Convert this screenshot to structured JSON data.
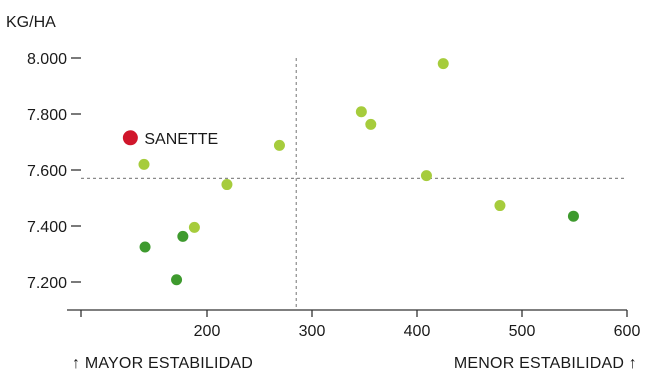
{
  "chart_data": {
    "type": "scatter",
    "ylabel": "KG/HA",
    "xlabel": "",
    "xlim": [
      80,
      600
    ],
    "ylim": [
      7100,
      8000
    ],
    "x_ticks": [
      200,
      300,
      400,
      500,
      600
    ],
    "x_tick_labels": [
      "200",
      "300",
      "400",
      "500",
      "600"
    ],
    "y_ticks": [
      7200,
      7400,
      7600,
      7800,
      8000
    ],
    "y_tick_labels": [
      "7.200",
      "7.400",
      "7.600",
      "7.800",
      "8.000"
    ],
    "reference_lines": {
      "x": 285,
      "y": 7570
    },
    "colors": {
      "highlight": "#d0162b",
      "light_green": "#a6cc3c",
      "dark_green": "#3e9a2e",
      "reference": "#8a8a8a",
      "axis": "#333333"
    },
    "series": [
      {
        "color": "#d0162b",
        "points": [
          {
            "x": 127,
            "y": 7715
          }
        ]
      },
      {
        "color": "#a6cc3c",
        "points": [
          {
            "x": 140,
            "y": 7620
          },
          {
            "x": 188,
            "y": 7395
          },
          {
            "x": 219,
            "y": 7548
          },
          {
            "x": 269,
            "y": 7688
          },
          {
            "x": 347,
            "y": 7808
          },
          {
            "x": 356,
            "y": 7763
          },
          {
            "x": 409,
            "y": 7580
          },
          {
            "x": 425,
            "y": 7980
          },
          {
            "x": 479,
            "y": 7473
          }
        ]
      },
      {
        "color": "#3e9a2e",
        "points": [
          {
            "x": 141,
            "y": 7325
          },
          {
            "x": 171,
            "y": 7208
          },
          {
            "x": 177,
            "y": 7363
          },
          {
            "x": 549,
            "y": 7435
          }
        ]
      }
    ],
    "annotations": [
      {
        "text": "SANETTE",
        "x": 127,
        "y": 7715
      }
    ],
    "footer_left": "↑ MAYOR ESTABILIDAD",
    "footer_right": "MENOR ESTABILIDAD ↑"
  }
}
